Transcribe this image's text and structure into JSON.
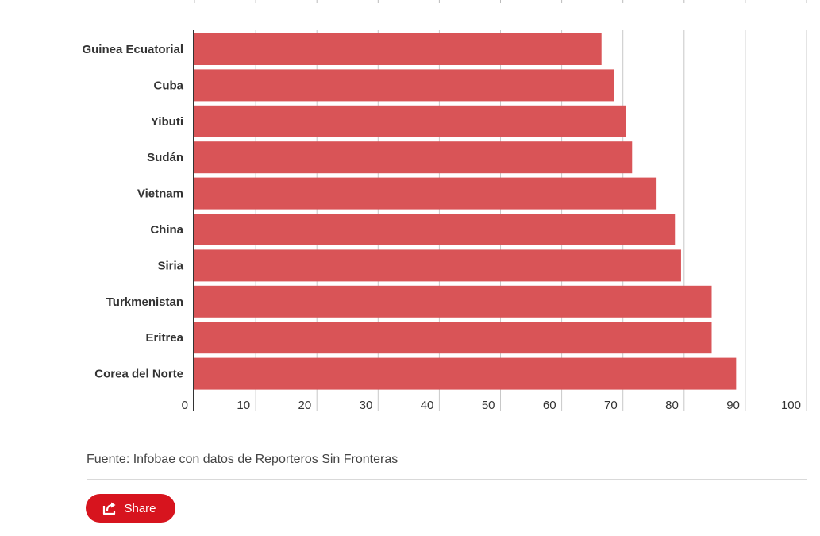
{
  "chart_data": {
    "type": "bar",
    "orientation": "horizontal",
    "categories": [
      "Guinea Ecuatorial",
      "Cuba",
      "Yibuti",
      "Sudán",
      "Vietnam",
      "China",
      "Siria",
      "Turkmenistan",
      "Eritrea",
      "Corea del Norte"
    ],
    "values": [
      66.5,
      68.5,
      70.5,
      71.5,
      75.5,
      78.5,
      79.5,
      84.5,
      84.5,
      88.5
    ],
    "xlim": [
      0,
      100
    ],
    "xticks": [
      "0",
      "10",
      "20",
      "30",
      "40",
      "50",
      "60",
      "70",
      "80",
      "90",
      "100"
    ],
    "grid": true,
    "bar_color": "#d95457",
    "title": "",
    "xlabel": "",
    "ylabel": ""
  },
  "footer": {
    "source": "Fuente: Infobae con datos de Reporteros Sin Fronteras"
  },
  "share": {
    "label": "Share",
    "icon": "share-icon",
    "color": "#d7141e"
  }
}
